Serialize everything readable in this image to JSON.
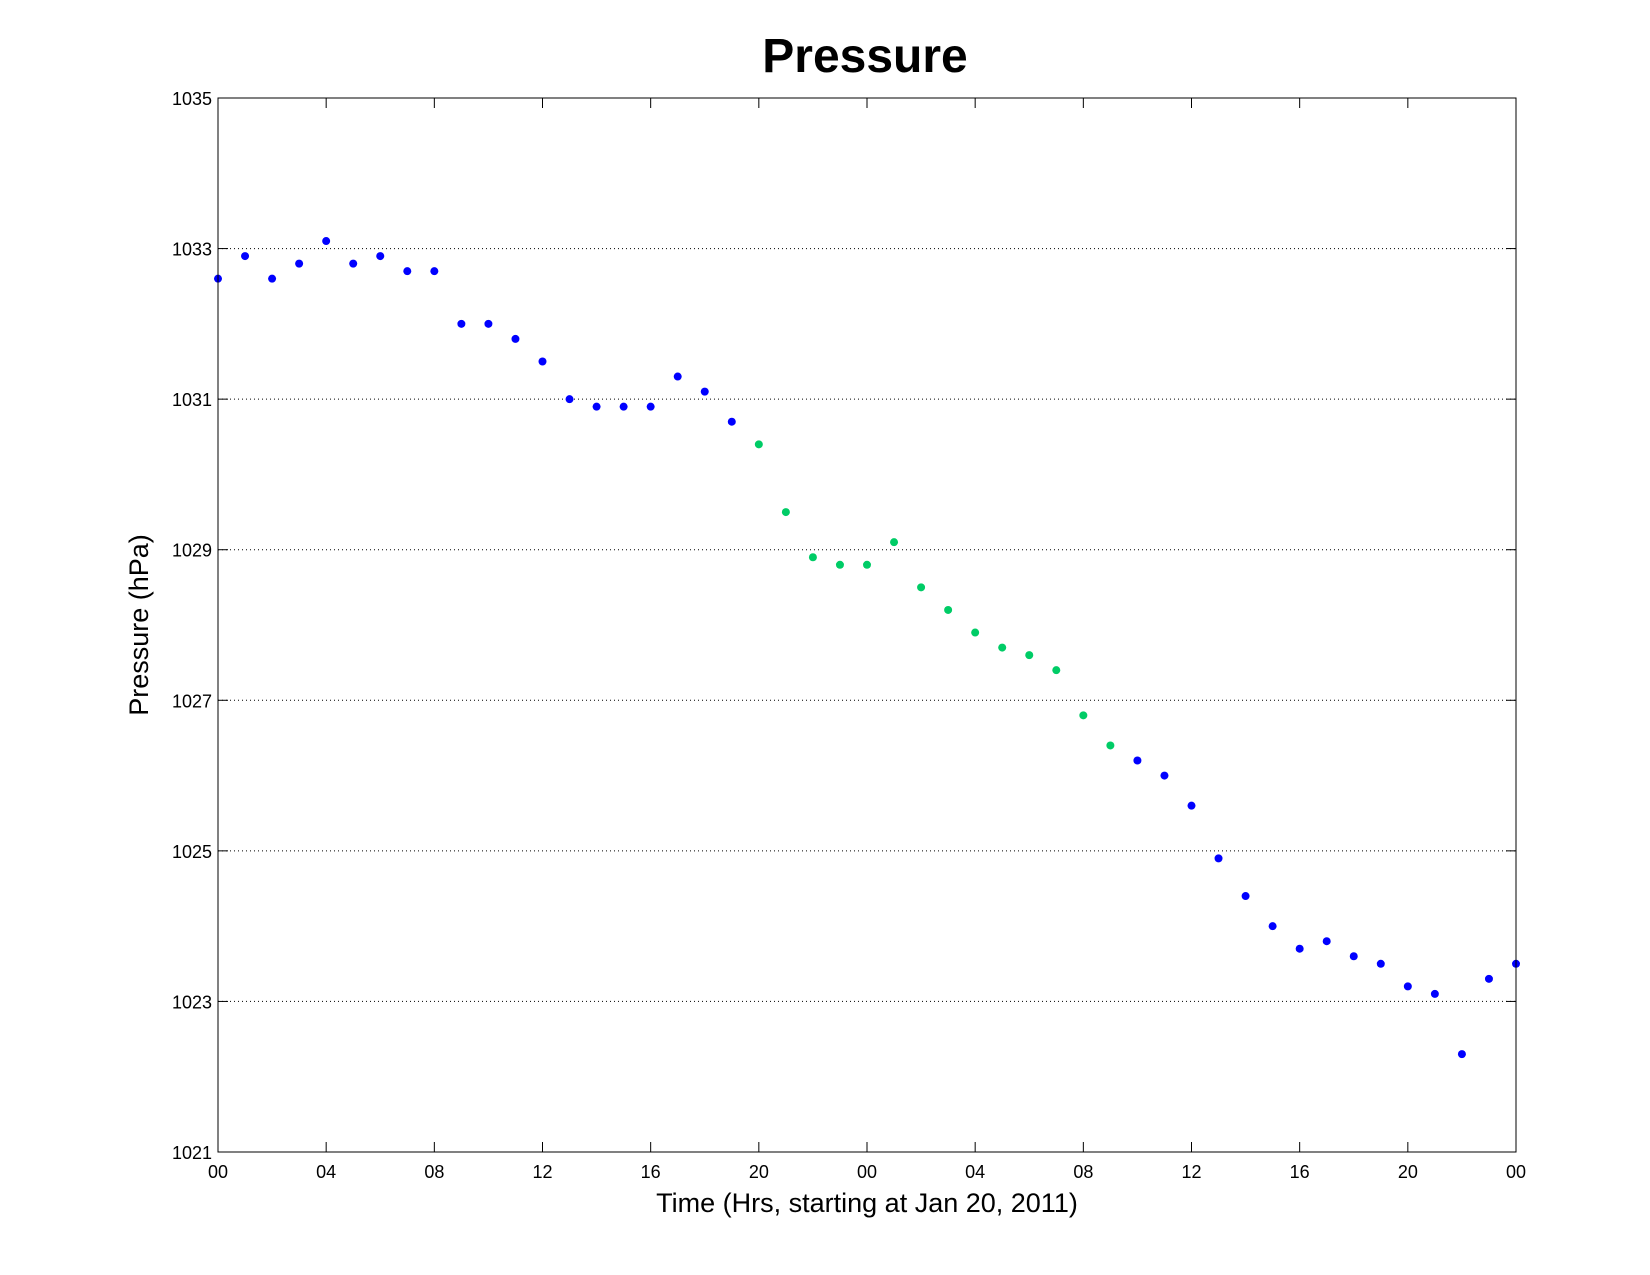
{
  "chart_data": {
    "type": "scatter",
    "title": "Pressure",
    "xlabel": "Time (Hrs, starting at Jan 20, 2011)",
    "ylabel": "Pressure (hPa)",
    "xlim": [
      0,
      48
    ],
    "ylim": [
      1021,
      1035
    ],
    "x_ticks": [
      {
        "x": 0,
        "label": "00"
      },
      {
        "x": 4,
        "label": "04"
      },
      {
        "x": 8,
        "label": "08"
      },
      {
        "x": 12,
        "label": "12"
      },
      {
        "x": 16,
        "label": "16"
      },
      {
        "x": 20,
        "label": "20"
      },
      {
        "x": 24,
        "label": "00"
      },
      {
        "x": 28,
        "label": "04"
      },
      {
        "x": 32,
        "label": "08"
      },
      {
        "x": 36,
        "label": "12"
      },
      {
        "x": 40,
        "label": "16"
      },
      {
        "x": 44,
        "label": "20"
      },
      {
        "x": 48,
        "label": "00"
      }
    ],
    "y_ticks": [
      1021,
      1023,
      1025,
      1027,
      1029,
      1031,
      1033,
      1035
    ],
    "grid": "horizontal dotted",
    "series": [
      {
        "color": "#0000ff",
        "x": [
          0,
          1,
          2,
          3,
          4,
          5,
          6,
          7,
          8,
          9,
          10,
          11,
          12,
          13,
          14,
          15,
          16,
          17,
          18,
          19,
          34,
          35,
          36,
          37,
          38,
          39,
          40,
          41,
          42,
          43,
          44,
          45,
          46,
          47,
          48
        ],
        "y": [
          1032.6,
          1032.9,
          1032.6,
          1032.8,
          1033.1,
          1032.8,
          1032.9,
          1032.7,
          1032.7,
          1032.0,
          1032.0,
          1031.8,
          1031.5,
          1031.0,
          1030.9,
          1030.9,
          1030.9,
          1031.3,
          1031.1,
          1030.7,
          1026.2,
          1026.0,
          1025.6,
          1024.9,
          1024.4,
          1024.0,
          1023.7,
          1023.8,
          1023.6,
          1023.5,
          1023.2,
          1023.1,
          1022.3,
          1023.3,
          1023.5
        ]
      },
      {
        "color": "#00cc66",
        "x": [
          20,
          21,
          22,
          23,
          24,
          25,
          26,
          27,
          28,
          29,
          30,
          31,
          32,
          33
        ],
        "y": [
          1030.4,
          1029.5,
          1028.9,
          1028.8,
          1028.8,
          1029.1,
          1028.5,
          1028.2,
          1027.9,
          1027.7,
          1027.6,
          1027.4,
          1026.8,
          1026.4
        ]
      }
    ]
  }
}
